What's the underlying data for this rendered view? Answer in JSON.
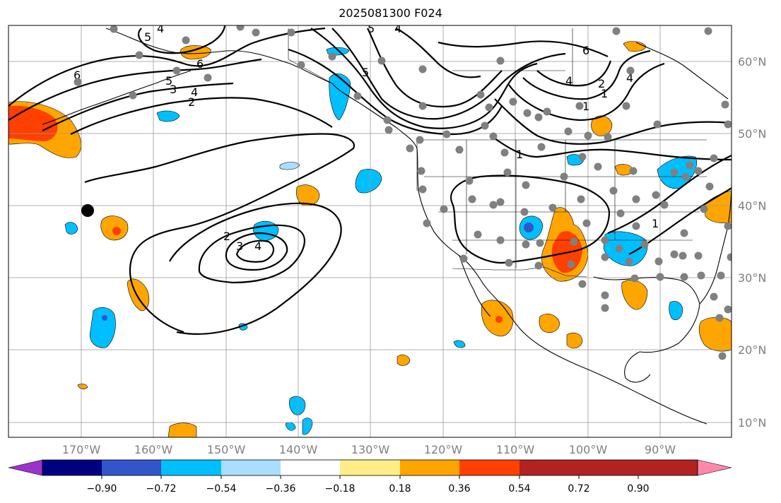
{
  "title": "2025081300 F024",
  "lat_labels": [
    "60°N",
    "50°N",
    "40°N",
    "30°N",
    "20°N",
    "10°N"
  ],
  "lon_labels": [
    "170°W",
    "160°W",
    "150°W",
    "140°W",
    "130°W",
    "120°W",
    "110°W",
    "100°W",
    "90°W"
  ],
  "colorbar": {
    "ticks": [
      "−0.90",
      "−0.72",
      "−0.54",
      "−0.36",
      "−0.18",
      "0.18",
      "0.36",
      "0.54",
      "0.72",
      "0.90"
    ],
    "colors": [
      "#9933cc",
      "#000080",
      "#3355cc",
      "#00bfff",
      "#aadeff",
      "#ffffff",
      "#ffee88",
      "#ffa500",
      "#ff4000",
      "#b22222",
      "#ff88aa"
    ]
  },
  "contour_labels": [
    "6",
    "5",
    "4",
    "3",
    "2",
    "1",
    "6",
    "5",
    "4",
    "2",
    "1",
    "6",
    "4",
    "2",
    "1",
    "1",
    "1",
    "2",
    "3",
    "4"
  ],
  "colors": {
    "contour": "#000000",
    "station": "#808080",
    "grid": "#999999",
    "coast": "#000000"
  }
}
